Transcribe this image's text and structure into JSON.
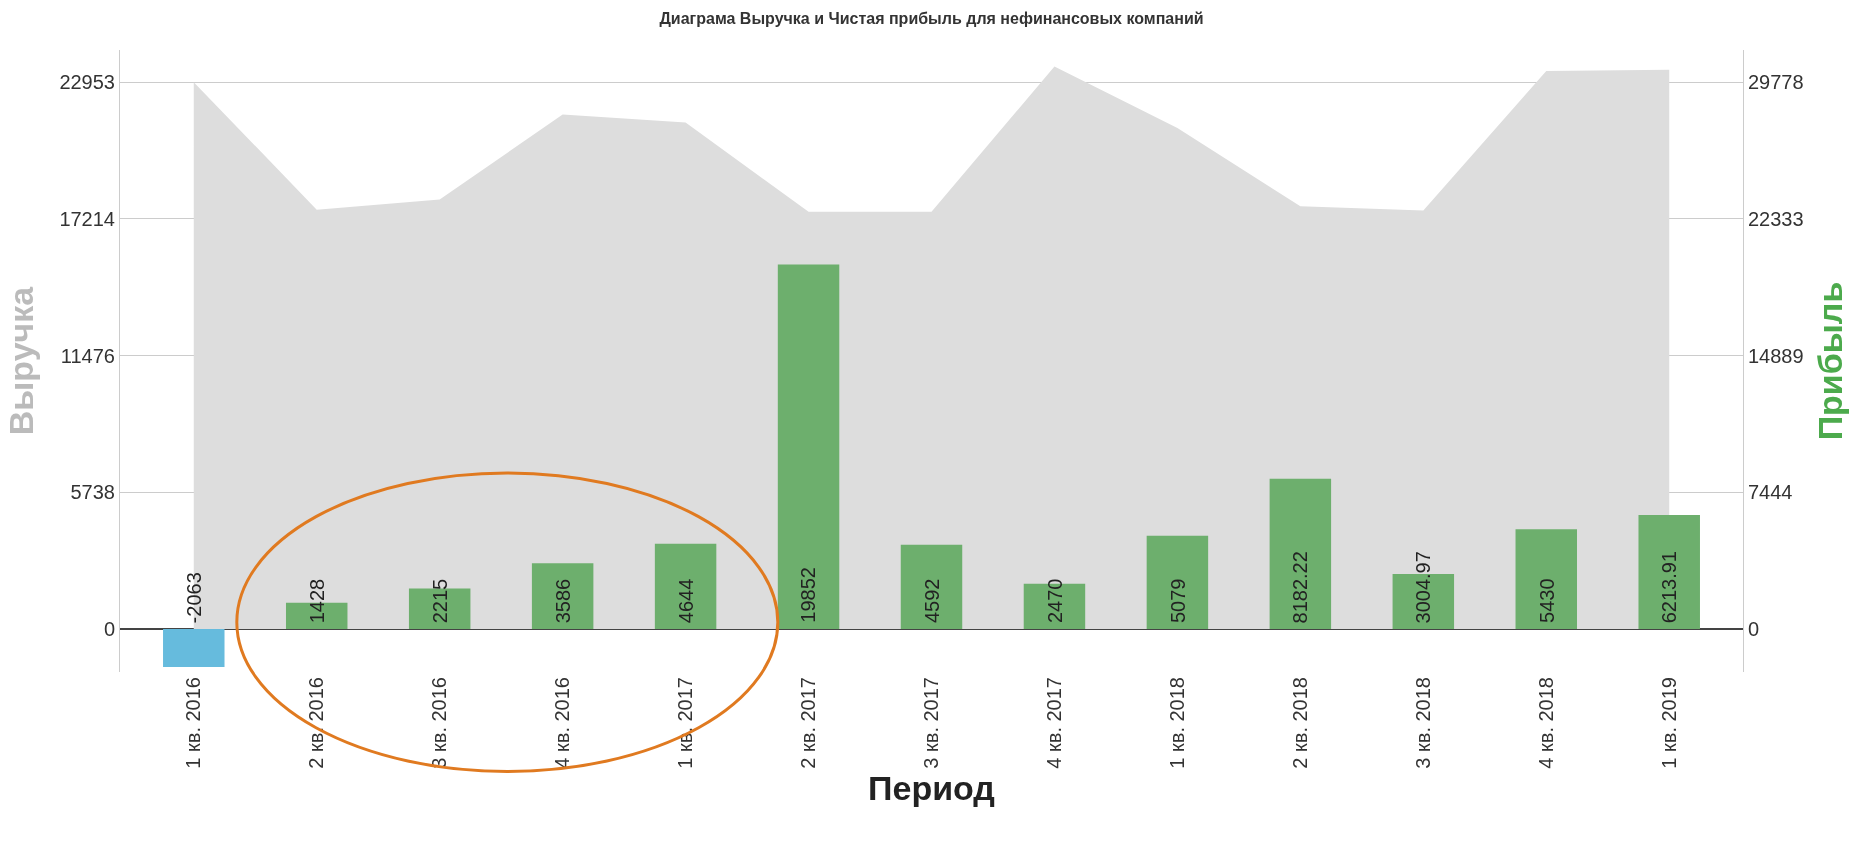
{
  "chart_data": {
    "type": "bar",
    "title": "Диаграма Выручка и Чистая прибыль для нефинансовых компаний",
    "xlabel": "Период",
    "ylabel": "Выручка",
    "y2label": "Прибыль",
    "categories": [
      "1 кв. 2016",
      "2 кв. 2016",
      "3 кв. 2016",
      "4 кв. 2016",
      "1 кв. 2017",
      "2 кв. 2017",
      "3 кв. 2017",
      "4 кв. 2017",
      "1 кв. 2018",
      "2 кв. 2018",
      "3 кв. 2018",
      "4 кв. 2018",
      "1 кв. 2019"
    ],
    "series": [
      {
        "type": "area",
        "color": "#dddddd",
        "values": [
          22950,
          17600,
          18030,
          21590,
          21260,
          17510,
          17510,
          23610,
          21030,
          17740,
          17560,
          23420,
          23470
        ]
      },
      {
        "axis": "y2",
        "value_labels": [
          "-2063",
          "1428",
          "2215",
          "3586",
          "4644",
          "19852",
          "4592",
          "2470",
          "5079",
          "8182.22",
          "3004.97",
          "5430",
          "6213.91"
        ],
        "colors": [
          "#66bbdd",
          "#6daf6d",
          "#6daf6d",
          "#6daf6d",
          "#6daf6d",
          "#6daf6d",
          "#6daf6d",
          "#6daf6d",
          "#6daf6d",
          "#6daf6d",
          "#6daf6d",
          "#6daf6d",
          "#6daf6d"
        ],
        "values": [
          -2063,
          1428,
          2215,
          3586,
          4644,
          19852,
          4592,
          2470,
          5079,
          8182.22,
          3004.97,
          5430,
          6213.91
        ]
      }
    ],
    "ylim": [
      -1800,
      24300
    ],
    "yticks": [
      0,
      5738,
      11476,
      17214,
      22953
    ],
    "y2lim": [
      -2335,
      31525
    ],
    "y2ticks": [
      0,
      7444,
      14889,
      22333,
      29778
    ],
    "grid": "y"
  }
}
